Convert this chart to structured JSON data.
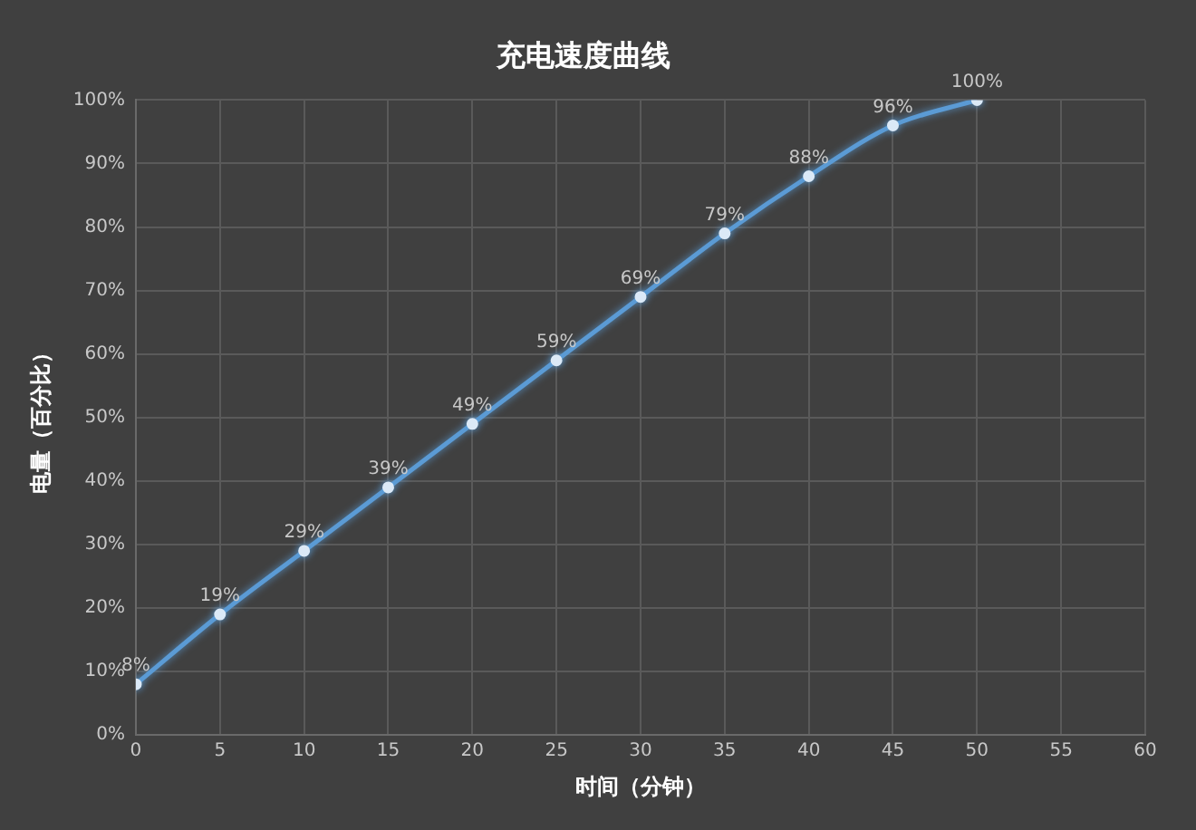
{
  "chart_data": {
    "type": "line",
    "title": "充电速度曲线",
    "xlabel": "时间（分钟）",
    "ylabel": "电量（百分比）",
    "x": [
      0,
      5,
      10,
      15,
      20,
      25,
      30,
      35,
      40,
      45,
      50
    ],
    "series": [
      {
        "color": "#5b9bd5",
        "values": [
          8,
          19,
          29,
          39,
          49,
          59,
          69,
          79,
          88,
          96,
          100
        ],
        "value_labels": [
          "8%",
          "19%",
          "29%",
          "39%",
          "49%",
          "59%",
          "69%",
          "79%",
          "88%",
          "96%",
          "100%"
        ]
      }
    ],
    "xlim": [
      0,
      60
    ],
    "xticks": [
      0,
      5,
      10,
      15,
      20,
      25,
      30,
      35,
      40,
      45,
      50,
      55,
      60
    ],
    "ylim": [
      0,
      100
    ],
    "yticks": [
      {
        "value": 0,
        "label": "0%"
      },
      {
        "value": 10,
        "label": "10%"
      },
      {
        "value": 20,
        "label": "20%"
      },
      {
        "value": 30,
        "label": "30%"
      },
      {
        "value": 40,
        "label": "40%"
      },
      {
        "value": 50,
        "label": "50%"
      },
      {
        "value": 60,
        "label": "60%"
      },
      {
        "value": 70,
        "label": "70%"
      },
      {
        "value": 80,
        "label": "80%"
      },
      {
        "value": 90,
        "label": "90%"
      },
      {
        "value": 100,
        "label": "100%"
      }
    ],
    "grid": true,
    "legend": false,
    "marker": "circle",
    "line_style": "solid"
  }
}
